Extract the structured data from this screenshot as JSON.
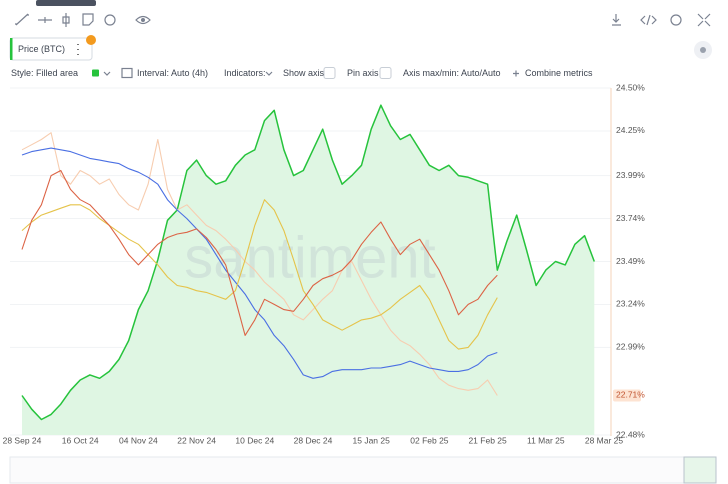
{
  "chart_data": {
    "type": "line",
    "metric_label": "Price (BTC)",
    "settings": {
      "style": "Style: Filled area",
      "interval": "Interval: Auto (4h)",
      "indicators": "Indicators:",
      "show_axis": "Show axis",
      "pin_axis": "Pin axis",
      "axis_minmax": "Axis max/min: Auto/Auto",
      "combine": "Combine metrics"
    },
    "watermark": "santiment",
    "categories": [
      "28 Sep 24",
      null,
      null,
      null,
      null,
      null,
      "16 Oct 24",
      null,
      null,
      null,
      null,
      null,
      "04 Nov 24",
      null,
      null,
      null,
      null,
      null,
      "22 Nov 24",
      null,
      null,
      null,
      null,
      null,
      "10 Dec 24",
      null,
      null,
      null,
      null,
      null,
      "28 Dec 24",
      null,
      null,
      null,
      null,
      null,
      "15 Jan 25",
      null,
      null,
      null,
      null,
      null,
      "02 Feb 25",
      null,
      null,
      null,
      null,
      null,
      "21 Feb 25",
      null,
      null,
      null,
      null,
      null,
      "11 Mar 25",
      null,
      null,
      null,
      null,
      null,
      "28 Mar 25"
    ],
    "ylim": [
      22.48,
      24.5
    ],
    "yticks": [
      {
        "value": 24.5,
        "label": "24.50%"
      },
      {
        "value": 24.25,
        "label": "24.25%"
      },
      {
        "value": 23.99,
        "label": "23.99%"
      },
      {
        "value": 23.74,
        "label": "23.74%"
      },
      {
        "value": 23.49,
        "label": "23.49%"
      },
      {
        "value": 23.24,
        "label": "23.24%"
      },
      {
        "value": 22.99,
        "label": "22.99%"
      },
      {
        "value": 22.48,
        "label": "22.48%"
      }
    ],
    "current_value": {
      "value": 22.71,
      "label": "22.71%"
    },
    "series": [
      {
        "name": "Price (BTC)",
        "color": "#26c33c",
        "fill": "#dff6e3",
        "values": [
          22.71,
          22.63,
          22.57,
          22.6,
          22.66,
          22.74,
          22.8,
          22.83,
          22.81,
          22.85,
          22.92,
          23.03,
          23.21,
          23.32,
          23.5,
          23.73,
          23.79,
          24.02,
          24.08,
          23.99,
          23.94,
          23.96,
          24.05,
          24.11,
          24.14,
          24.31,
          24.37,
          24.14,
          23.99,
          24.02,
          24.14,
          24.26,
          24.08,
          23.94,
          23.99,
          24.05,
          24.26,
          24.4,
          24.28,
          24.2,
          24.23,
          24.14,
          24.05,
          24.02,
          24.05,
          23.99,
          23.98,
          23.96,
          23.94,
          23.44,
          23.61,
          23.76,
          23.56,
          23.35,
          23.44,
          23.49,
          23.47,
          23.59,
          23.64,
          23.49,
          null
        ]
      },
      {
        "color": "#f7cdb0",
        "values": [
          24.14,
          24.17,
          24.2,
          24.24,
          23.99,
          23.94,
          24.02,
          23.99,
          23.94,
          23.97,
          23.88,
          23.82,
          23.79,
          23.94,
          24.2,
          23.91,
          23.79,
          23.82,
          23.76,
          23.7,
          23.67,
          23.62,
          23.56,
          23.49,
          23.44,
          23.37,
          23.32,
          23.27,
          23.18,
          23.15,
          23.21,
          23.27,
          23.32,
          23.44,
          23.49,
          23.38,
          23.27,
          23.18,
          23.09,
          23.03,
          23.0,
          22.95,
          22.89,
          22.81,
          22.77,
          22.75,
          22.74,
          22.75,
          22.8,
          22.71,
          null,
          null,
          null,
          null,
          null,
          null,
          null,
          null,
          null,
          null,
          null
        ]
      },
      {
        "color": "#4a6fe3",
        "values": [
          24.11,
          24.13,
          24.14,
          24.15,
          24.14,
          24.13,
          24.11,
          24.09,
          24.08,
          24.07,
          24.06,
          24.03,
          24.01,
          23.98,
          23.94,
          23.85,
          23.79,
          23.74,
          23.68,
          23.62,
          23.53,
          23.44,
          23.37,
          23.3,
          23.21,
          23.15,
          23.06,
          23.0,
          22.92,
          22.83,
          22.81,
          22.82,
          22.85,
          22.86,
          22.86,
          22.86,
          22.87,
          22.87,
          22.88,
          22.89,
          22.91,
          22.89,
          22.87,
          22.86,
          22.85,
          22.85,
          22.86,
          22.89,
          22.94,
          22.96,
          null,
          null,
          null,
          null,
          null,
          null,
          null,
          null,
          null,
          null,
          null
        ]
      },
      {
        "color": "#e5c34a",
        "values": [
          23.67,
          23.72,
          23.76,
          23.78,
          23.8,
          23.82,
          23.82,
          23.79,
          23.74,
          23.7,
          23.66,
          23.62,
          23.59,
          23.53,
          23.47,
          23.4,
          23.35,
          23.34,
          23.32,
          23.31,
          23.29,
          23.27,
          23.32,
          23.5,
          23.7,
          23.85,
          23.79,
          23.67,
          23.5,
          23.32,
          23.24,
          23.15,
          23.12,
          23.09,
          23.12,
          23.15,
          23.16,
          23.18,
          23.22,
          23.27,
          23.31,
          23.35,
          23.27,
          23.15,
          23.03,
          22.98,
          22.99,
          23.06,
          23.18,
          23.28,
          null,
          null,
          null,
          null,
          null,
          null,
          null,
          null,
          null,
          null,
          null
        ]
      },
      {
        "color": "#dc6446",
        "values": [
          23.56,
          23.73,
          23.82,
          23.99,
          24.02,
          23.91,
          23.85,
          23.82,
          23.76,
          23.7,
          23.62,
          23.53,
          23.47,
          23.53,
          23.59,
          23.63,
          23.65,
          23.66,
          23.68,
          23.63,
          23.56,
          23.47,
          23.27,
          23.06,
          23.15,
          23.27,
          23.24,
          23.21,
          23.2,
          23.27,
          23.35,
          23.39,
          23.41,
          23.44,
          23.5,
          23.59,
          23.66,
          23.72,
          23.62,
          23.53,
          23.59,
          23.62,
          23.53,
          23.44,
          23.32,
          23.18,
          23.24,
          23.27,
          23.35,
          23.41,
          null,
          null,
          null,
          null,
          null,
          null,
          null,
          null,
          null,
          null,
          null
        ]
      }
    ]
  }
}
